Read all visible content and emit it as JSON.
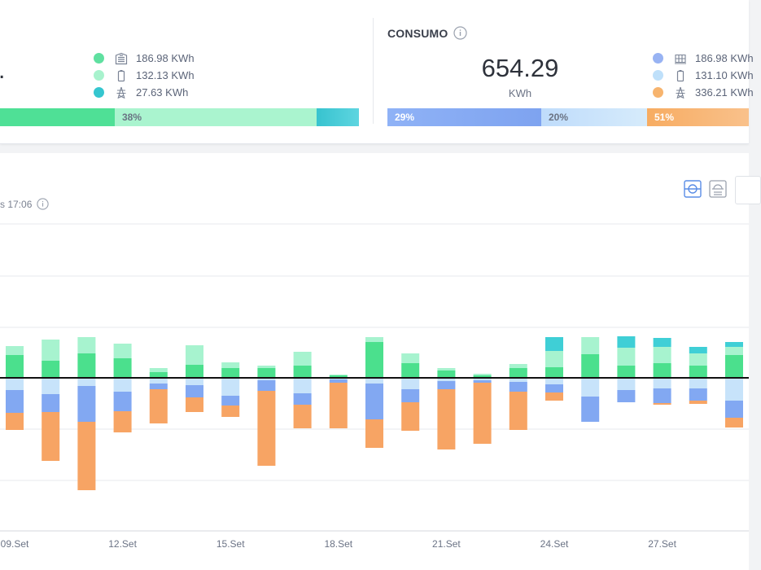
{
  "production": {
    "partial_value": ".",
    "legend": [
      {
        "icon": "building-icon",
        "color": "#5fe0a0",
        "value": "186.98 KWh"
      },
      {
        "icon": "battery-icon",
        "color": "#a8f2cd",
        "value": "132.13 KWh"
      },
      {
        "icon": "power-tower-icon",
        "color": "#35c6cf",
        "value": "27.63 KWh"
      }
    ],
    "bar_labels": {
      "seg2": "38%"
    }
  },
  "consumption": {
    "title": "CONSUMO",
    "value": "654.29",
    "unit": "KWh",
    "legend": [
      {
        "icon": "grid-icon",
        "color": "#98b3f3",
        "value": "186.98 KWh"
      },
      {
        "icon": "battery-icon",
        "color": "#bfe0fa",
        "value": "131.10 KWh"
      },
      {
        "icon": "power-tower-icon",
        "color": "#f7b46e",
        "value": "336.21 KWh"
      }
    ],
    "bar_labels": {
      "seg1": "29%",
      "seg2": "20%",
      "seg3": "51%"
    }
  },
  "chart_header": {
    "updated": "s 17:06"
  },
  "chart_data": {
    "type": "bar",
    "stacked": true,
    "x_ticks": [
      "09.Set",
      "12.Set",
      "15.Set",
      "18.Set",
      "21.Set",
      "24.Set",
      "27.Set"
    ],
    "colors": {
      "p1": "#4be08d",
      "p2": "#a7f3cf",
      "p3": "#3fcfd6",
      "c1": "#82a8f2",
      "c2": "#c7e3fa",
      "c3": "#f7a464"
    },
    "bars": [
      {
        "p1": 28,
        "p2": 11,
        "p3": 0,
        "c1": 28,
        "c2": 15,
        "c3": 21
      },
      {
        "p1": 21,
        "p2": 26,
        "p3": 0,
        "c1": 22,
        "c2": 20,
        "c3": 60
      },
      {
        "p1": 30,
        "p2": 20,
        "p3": 0,
        "c1": 44,
        "c2": 10,
        "c3": 84
      },
      {
        "p1": 24,
        "p2": 18,
        "p3": 0,
        "c1": 24,
        "c2": 17,
        "c3": 26
      },
      {
        "p1": 7,
        "p2": 5,
        "p3": 0,
        "c1": 7,
        "c2": 7,
        "c3": 42
      },
      {
        "p1": 16,
        "p2": 24,
        "p3": 0,
        "c1": 15,
        "c2": 9,
        "c3": 18
      },
      {
        "p1": 12,
        "p2": 7,
        "p3": 0,
        "c1": 12,
        "c2": 22,
        "c3": 14
      },
      {
        "p1": 12,
        "p2": 3,
        "p3": 0,
        "c1": 13,
        "c2": 3,
        "c3": 92
      },
      {
        "p1": 15,
        "p2": 17,
        "p3": 0,
        "c1": 14,
        "c2": 19,
        "c3": 29
      },
      {
        "p1": 3,
        "p2": 1,
        "p3": 0,
        "c1": 4,
        "c2": 2,
        "c3": 56
      },
      {
        "p1": 44,
        "p2": 6,
        "p3": 0,
        "c1": 44,
        "c2": 7,
        "c3": 35
      },
      {
        "p1": 18,
        "p2": 12,
        "p3": 0,
        "c1": 16,
        "c2": 14,
        "c3": 35
      },
      {
        "p1": 9,
        "p2": 3,
        "p3": 0,
        "c1": 10,
        "c2": 4,
        "c3": 74
      },
      {
        "p1": 3,
        "p2": 2,
        "p3": 0,
        "c1": 3,
        "c2": 3,
        "c3": 75
      },
      {
        "p1": 12,
        "p2": 5,
        "p3": 0,
        "c1": 12,
        "c2": 5,
        "c3": 47
      },
      {
        "p1": 13,
        "p2": 20,
        "p3": 17,
        "c1": 10,
        "c2": 8,
        "c3": 10
      },
      {
        "p1": 29,
        "p2": 21,
        "p3": 0,
        "c1": 31,
        "c2": 23,
        "c3": 0
      },
      {
        "p1": 15,
        "p2": 22,
        "p3": 14,
        "c1": 15,
        "c2": 15,
        "c3": 0
      },
      {
        "p1": 18,
        "p2": 20,
        "p3": 11,
        "c1": 18,
        "c2": 13,
        "c3": 2
      },
      {
        "p1": 15,
        "p2": 15,
        "p3": 8,
        "c1": 15,
        "c2": 13,
        "c3": 4
      },
      {
        "p1": 28,
        "p2": 10,
        "p3": 6,
        "c1": 21,
        "c2": 28,
        "c3": 12
      }
    ]
  }
}
